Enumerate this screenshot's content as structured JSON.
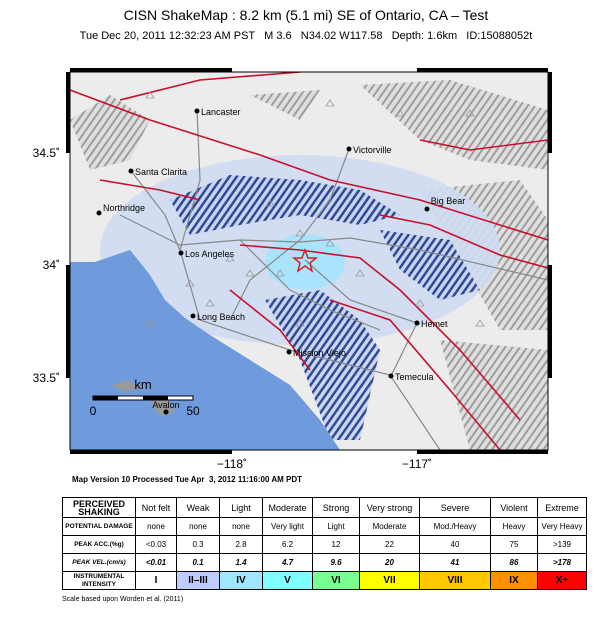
{
  "title": "CISN ShakeMap : 8.2 km (5.1 mi) SE of Ontario, CA – Test",
  "subtitle": "Tue Dec 20, 2011 12:32:23 AM PST   M 3.6   N34.02 W117.58   Depth: 1.6km   ID:15088052t",
  "map": {
    "lat_labels": [
      "34.5˚",
      "34˚",
      "33.5˚"
    ],
    "lon_labels": [
      "−118˚",
      "−117˚"
    ],
    "cities": [
      "Lancaster",
      "Victorville",
      "Santa Clarita",
      "Northridge",
      "Big Bear",
      "Los Angeles",
      "Long Beach",
      "Hemet",
      "Mission Viejo",
      "Temecula",
      "Avalon"
    ],
    "scale": {
      "unit": "km",
      "start": "0",
      "end": "50"
    }
  },
  "version": "Map Version 10 Processed Tue Apr  3, 2012 11:16:00 AM PDT",
  "table": {
    "rows": [
      [
        "PERCEIVED SHAKING",
        "Not felt",
        "Weak",
        "Light",
        "Moderate",
        "Strong",
        "Very strong",
        "Severe",
        "Violent",
        "Extreme"
      ],
      [
        "POTENTIAL DAMAGE",
        "none",
        "none",
        "none",
        "Very light",
        "Light",
        "Moderate",
        "Mod./Heavy",
        "Heavy",
        "Very Heavy"
      ],
      [
        "PEAK ACC.(%g)",
        "<0.03",
        "0.3",
        "2.8",
        "6.2",
        "12",
        "22",
        "40",
        "75",
        ">139"
      ],
      [
        "PEAK VEL.(cm/s)",
        "<0.01",
        "0.1",
        "1.4",
        "4.7",
        "9.6",
        "20",
        "41",
        "86",
        ">178"
      ],
      [
        "INSTRUMENTAL INTENSITY",
        "I",
        "II–III",
        "IV",
        "V",
        "VI",
        "VII",
        "VIII",
        "IX",
        "X+"
      ]
    ],
    "intensity_colors": [
      "#ffffff",
      "#bfccff",
      "#a0e6ff",
      "#80ffff",
      "#7aff93",
      "#ffff00",
      "#ffc800",
      "#ff9100",
      "#ff0000"
    ]
  },
  "footnote": "Scale based upon Worden et al. (2011)"
}
